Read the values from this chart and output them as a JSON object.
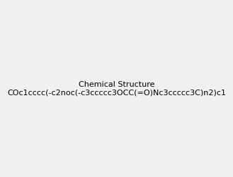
{
  "smiles": "COc1cccc(-c2noc(-c3ccccc3OCC(=O)Nc3ccccc3C)n2)c1",
  "image_size": 300,
  "background_color": "#f0f0f0",
  "title": ""
}
